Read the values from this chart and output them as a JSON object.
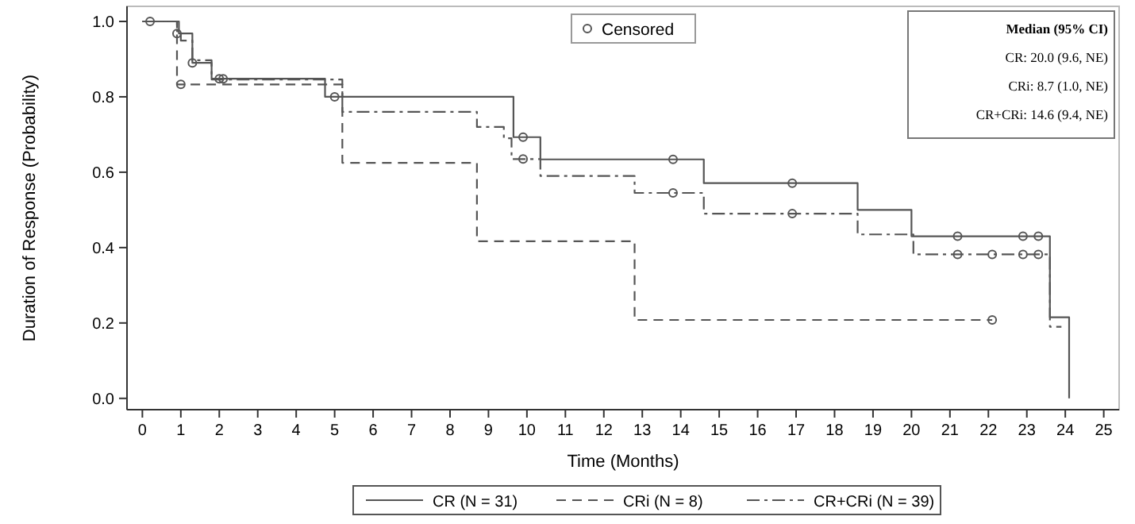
{
  "chart_data": {
    "type": "step",
    "xlabel": "Time (Months)",
    "ylabel": "Duration of Response (Probability)",
    "xlim": [
      -0.4,
      25.4
    ],
    "xticks": [
      0,
      1,
      2,
      3,
      4,
      5,
      6,
      7,
      8,
      9,
      10,
      11,
      12,
      13,
      14,
      15,
      16,
      17,
      18,
      19,
      20,
      21,
      22,
      23,
      24,
      25
    ],
    "ylim": [
      -0.03,
      1.04
    ],
    "yticks": [
      {
        "value": 0,
        "label": "0.0"
      },
      {
        "value": 0.2,
        "label": "0.2"
      },
      {
        "value": 0.4,
        "label": "0.4"
      },
      {
        "value": 0.6,
        "label": "0.6"
      },
      {
        "value": 0.8,
        "label": "0.8"
      },
      {
        "value": 1,
        "label": "1.0"
      }
    ],
    "grid": false,
    "legend": "bottom",
    "annotations": [
      "Median (95% CI)",
      "CR: 20.0 (9.6, NE)",
      "CRi: 8.7 (1.0, NE)",
      "CR+CRi: 14.6 (9.4, NE)"
    ],
    "series": [
      {
        "name": "CR (N = 31)",
        "color": "#555555",
        "line_style": "solid",
        "x": [
          0,
          0.95,
          1.3,
          1.8,
          4.75,
          9.65,
          10.35,
          14.6,
          18.6,
          20.0,
          23.6,
          24.1
        ],
        "values": [
          1,
          0.968,
          0.89,
          0.848,
          0.8,
          0.693,
          0.634,
          0.571,
          0.5,
          0.43,
          0.215,
          0
        ]
      },
      {
        "name": "CRi (N = 8)",
        "color": "#555555",
        "line_style": "dashed",
        "x": [
          0,
          0.9,
          5.2,
          8.7,
          12.8,
          22.1
        ],
        "values": [
          1,
          0.833,
          0.625,
          0.417,
          0.208,
          0.208
        ]
      },
      {
        "name": "CR+CRi (N = 39)",
        "color": "#555555",
        "line_style": "dashdot",
        "x": [
          0,
          0.9,
          1.0,
          1.3,
          1.8,
          5.2,
          8.7,
          9.4,
          9.6,
          10.35,
          12.8,
          14.6,
          18.6,
          20.05,
          23.6,
          23.9
        ],
        "values": [
          1,
          0.974,
          0.949,
          0.897,
          0.846,
          0.76,
          0.72,
          0.69,
          0.635,
          0.59,
          0.545,
          0.49,
          0.435,
          0.382,
          0.19,
          0.19
        ]
      },
      {
        "name": "Censored",
        "type": "scatter",
        "color": "#555555",
        "marker": "circle",
        "x": [
          0.2,
          0.9,
          1.0,
          1.3,
          2.0,
          2.1,
          5.0,
          9.9,
          9.9,
          13.8,
          13.8,
          16.9,
          16.9,
          21.2,
          21.2,
          22.1,
          22.1,
          22.9,
          22.9,
          23.3,
          23.3
        ],
        "values": [
          1,
          0.968,
          0.833,
          0.89,
          0.848,
          0.848,
          0.8,
          0.693,
          0.635,
          0.634,
          0.545,
          0.571,
          0.49,
          0.43,
          0.382,
          0.382,
          0.208,
          0.43,
          0.382,
          0.43,
          0.382
        ]
      }
    ]
  }
}
